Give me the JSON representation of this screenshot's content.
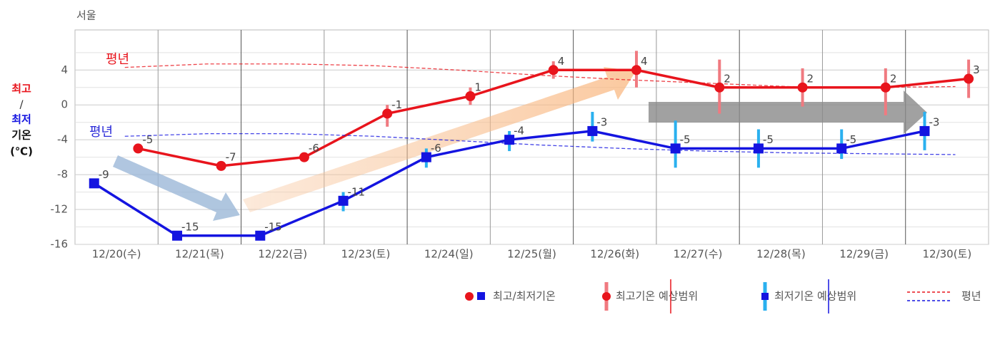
{
  "chart_data": {
    "type": "line",
    "title": "서울",
    "ylabel": [
      "최고",
      "/",
      "최저",
      "기온",
      "(℃)"
    ],
    "categories": [
      "12/20(수)",
      "12/21(목)",
      "12/22(금)",
      "12/23(토)",
      "12/24(일)",
      "12/25(월)",
      "12/26(화)",
      "12/27(수)",
      "12/28(목)",
      "12/29(금)",
      "12/30(토)"
    ],
    "series": [
      {
        "color": "#e8141c",
        "range_color": "#f07a80",
        "marker": "circle",
        "offset": 0.76,
        "values": [
          -5,
          -7,
          -6,
          -1,
          1,
          4,
          4,
          2,
          2,
          2,
          3
        ],
        "range": [
          null,
          null,
          null,
          [
            -2.5,
            0
          ],
          [
            0,
            2
          ],
          [
            3,
            5
          ],
          [
            2,
            6.2
          ],
          [
            -1,
            5.2
          ],
          [
            -0.2,
            4.2
          ],
          [
            -1.2,
            4.2
          ],
          [
            0.8,
            5.2
          ]
        ],
        "normal": [
          4.3,
          4.7,
          4.7,
          4.5,
          4.0,
          3.4,
          2.9,
          2.5,
          2.1,
          2.0,
          2.1
        ]
      },
      {
        "color": "#1414e0",
        "range_color": "#2ab0ef",
        "marker": "square",
        "offset": 0.23,
        "values": [
          -9,
          -15,
          -15,
          -11,
          -6,
          -4,
          -3,
          -5,
          -5,
          -5,
          -3
        ],
        "range": [
          null,
          null,
          null,
          [
            -12.2,
            -10
          ],
          [
            -7.2,
            -5
          ],
          [
            -5.3,
            -3
          ],
          [
            -4.2,
            -0.8
          ],
          [
            -7.2,
            -1.8
          ],
          [
            -7.2,
            -2.8
          ],
          [
            -6.2,
            -2.8
          ],
          [
            -5.2,
            -0.8
          ]
        ],
        "normal": [
          -3.6,
          -3.3,
          -3.3,
          -3.6,
          -4.1,
          -4.6,
          -5.0,
          -5.3,
          -5.5,
          -5.6,
          -5.7
        ]
      }
    ],
    "normal_label": "평년",
    "ylim": [
      -16,
      8.6
    ],
    "yticks": [
      -16,
      -12,
      -8,
      -4,
      0,
      4
    ],
    "minor_yticks": [
      -14,
      -10,
      -6,
      -2,
      2,
      6
    ],
    "grid": true,
    "legend": [
      "최고/최저기온",
      "최고기온 예상범위",
      "최저기온 예상범위",
      "평년"
    ]
  }
}
